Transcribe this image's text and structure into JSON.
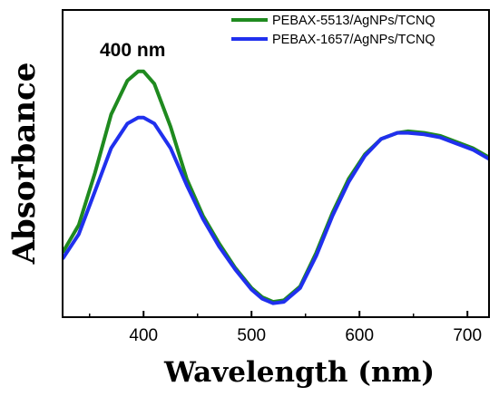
{
  "chart_data": {
    "type": "line",
    "xlabel": "Wavelength (nm)",
    "ylabel": "Absorbance",
    "xlim": [
      325,
      720
    ],
    "ylim": [
      0,
      1.0
    ],
    "x_ticks": [
      400,
      500,
      600,
      700
    ],
    "y_ticks_shown": false,
    "grid": false,
    "legend_position": "top-right",
    "annotations": [
      {
        "text": "400 nm",
        "x": 400,
        "y": 0.9
      }
    ],
    "x": [
      325,
      340,
      355,
      370,
      385,
      395,
      400,
      410,
      425,
      440,
      455,
      470,
      485,
      500,
      510,
      520,
      530,
      545,
      560,
      575,
      590,
      605,
      620,
      635,
      645,
      660,
      675,
      690,
      705,
      720
    ],
    "series": [
      {
        "name": "PEBAX-5513/AgNPs/TCNQ",
        "color": "#1f8a1f",
        "values": [
          0.21,
          0.3,
          0.47,
          0.66,
          0.77,
          0.8,
          0.8,
          0.76,
          0.62,
          0.45,
          0.33,
          0.24,
          0.16,
          0.095,
          0.065,
          0.05,
          0.055,
          0.1,
          0.21,
          0.34,
          0.45,
          0.53,
          0.58,
          0.6,
          0.605,
          0.6,
          0.59,
          0.57,
          0.55,
          0.52
        ]
      },
      {
        "name": "PEBAX-1657/AgNPs/TCNQ",
        "color": "#2030ee",
        "values": [
          0.19,
          0.27,
          0.41,
          0.55,
          0.63,
          0.65,
          0.65,
          0.63,
          0.55,
          0.43,
          0.32,
          0.23,
          0.155,
          0.09,
          0.06,
          0.045,
          0.05,
          0.095,
          0.2,
          0.33,
          0.44,
          0.525,
          0.58,
          0.6,
          0.6,
          0.595,
          0.585,
          0.565,
          0.545,
          0.515
        ]
      }
    ]
  }
}
